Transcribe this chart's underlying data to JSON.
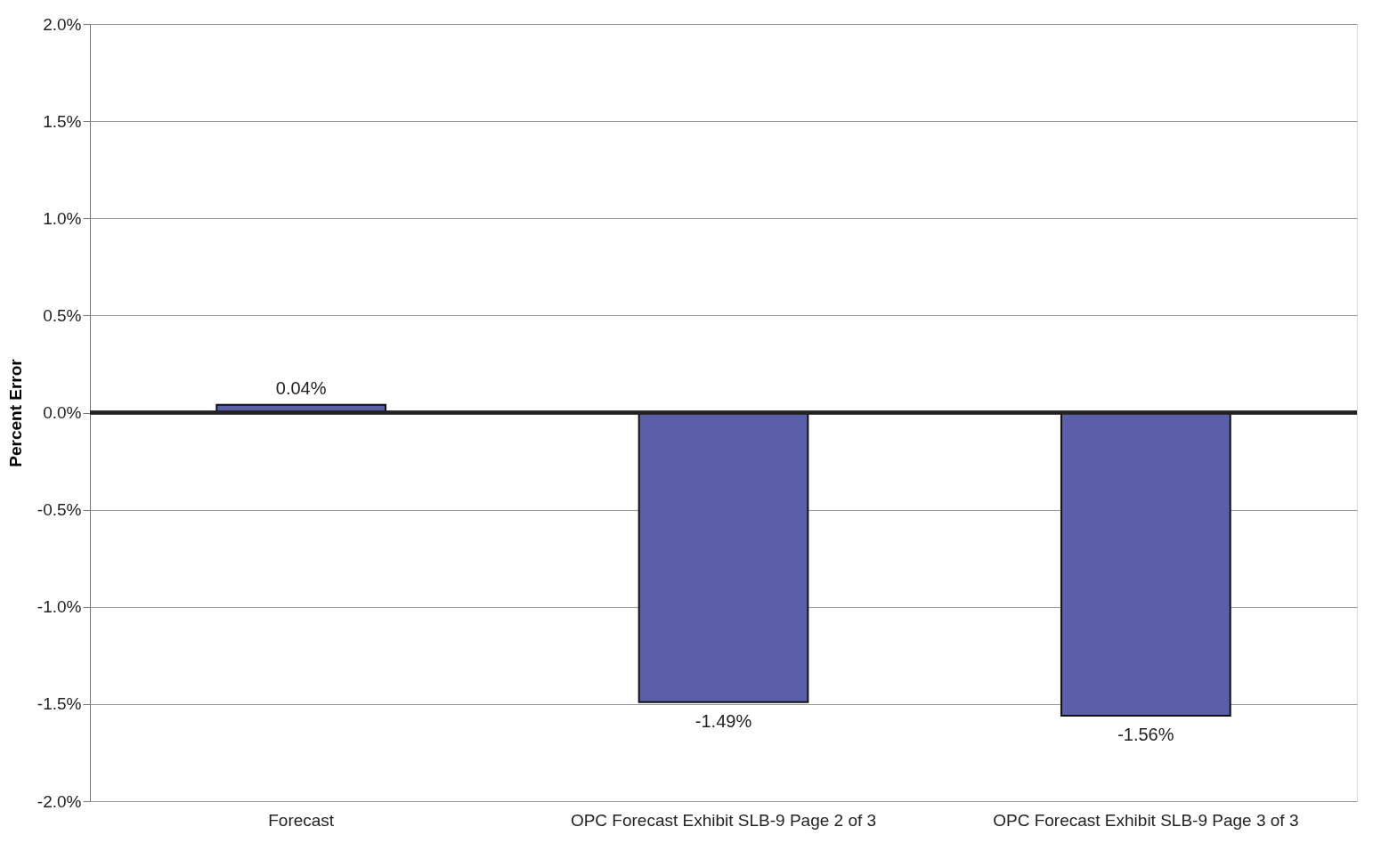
{
  "chart_data": {
    "type": "bar",
    "ylabel": "Percent Error",
    "categories": [
      "Forecast",
      "OPC Forecast Exhibit SLB-9 Page 2 of 3",
      "OPC Forecast Exhibit SLB-9 Page 3 of 3"
    ],
    "values": [
      0.04,
      -1.49,
      -1.56
    ],
    "color": "#5b5ea8",
    "value_labels": [
      "0.04%",
      "-1.49%",
      "-1.56%"
    ],
    "ylim": [
      -2,
      2
    ],
    "yticks": [
      {
        "value": -2,
        "label": "-2.0%"
      },
      {
        "value": -1.5,
        "label": "-1.5%"
      },
      {
        "value": -1,
        "label": "-1.0%"
      },
      {
        "value": -0.5,
        "label": "-0.5%"
      },
      {
        "value": 0,
        "label": "0.0%"
      },
      {
        "value": 0.5,
        "label": "0.5%"
      },
      {
        "value": 1,
        "label": "1.0%"
      },
      {
        "value": 1.5,
        "label": "1.5%"
      },
      {
        "value": 2,
        "label": "2.0%"
      }
    ],
    "grid": "y"
  }
}
